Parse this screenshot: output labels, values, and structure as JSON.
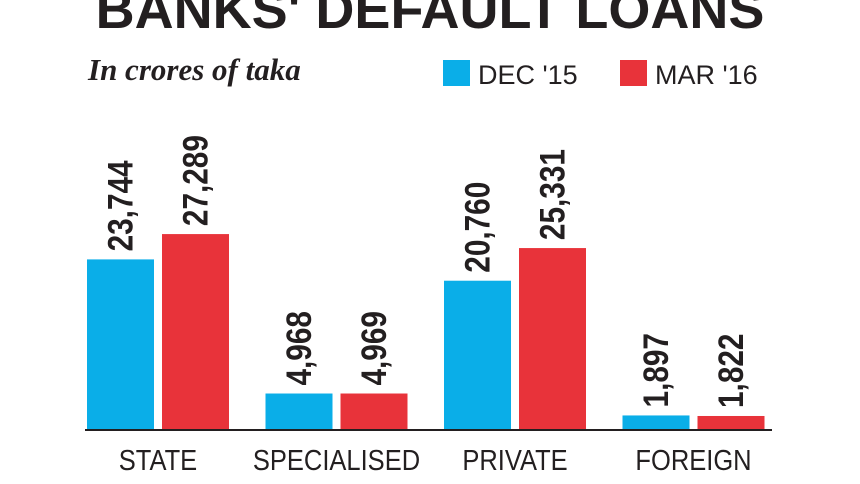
{
  "chart_data": {
    "type": "bar",
    "title": "BANKS' DEFAULT LOANS",
    "subtitle": "In crores of taka",
    "categories": [
      "STATE",
      "SPECIALISED",
      "PRIVATE",
      "FOREIGN"
    ],
    "series": [
      {
        "name": "DEC '15",
        "color": "#0aaee8",
        "values": [
          23744,
          4968,
          20760,
          1897
        ],
        "value_labels": [
          "23,744",
          "4,968",
          "20,760",
          "1,897"
        ]
      },
      {
        "name": "MAR '16",
        "color": "#e8333a",
        "values": [
          27289,
          4969,
          25331,
          1822
        ],
        "value_labels": [
          "27,289",
          "4,969",
          "25,331",
          "1,822"
        ]
      }
    ]
  }
}
